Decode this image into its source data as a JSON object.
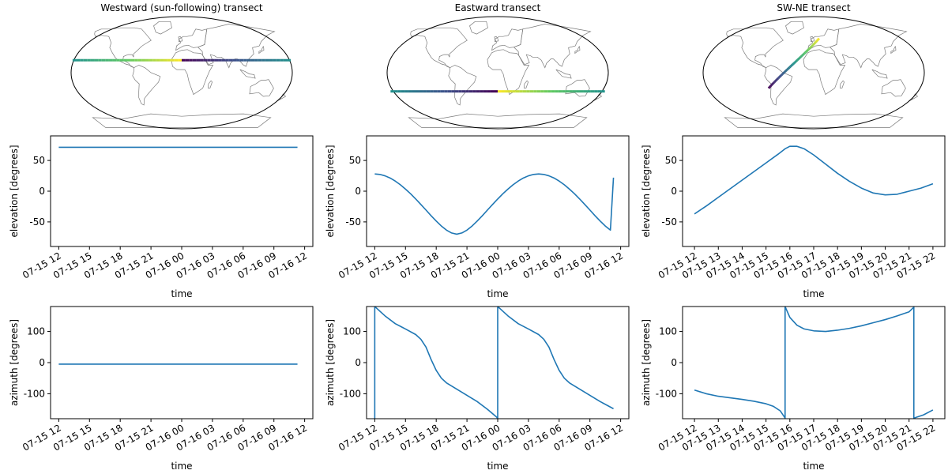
{
  "chart_data": [
    {
      "type": "map",
      "title": "Westward (sun-following) transect",
      "colormap": "viridis",
      "transect": {
        "lon": [
          -180,
          180
        ],
        "lat": [
          20,
          20
        ],
        "color_reversed": false,
        "split": true
      }
    },
    {
      "type": "map",
      "title": "Eastward transect",
      "colormap": "viridis",
      "transect": {
        "lon": [
          -180,
          180
        ],
        "lat": [
          -30,
          -30
        ],
        "color_reversed": true,
        "split": true
      }
    },
    {
      "type": "map",
      "title": "SW-NE transect",
      "colormap": "viridis",
      "transect": {
        "lon": [
          -75,
          10
        ],
        "lat": [
          -25,
          55
        ],
        "color_reversed": false,
        "split": false
      }
    },
    {
      "type": "line",
      "xlabel": "time",
      "ylabel": "elevation [degrees]",
      "ylim": [
        -90,
        90
      ],
      "yticks": [
        -50,
        0,
        50
      ],
      "xlim": [
        -0.8,
        24.8
      ],
      "xticks": [
        0,
        3,
        6,
        9,
        12,
        15,
        18,
        21,
        24
      ],
      "xticklabels": [
        "07-15 12",
        "07-15 15",
        "07-15 18",
        "07-15 21",
        "07-16 00",
        "07-16 03",
        "07-16 06",
        "07-16 09",
        "07-16 12"
      ],
      "x": [
        0,
        23.3
      ],
      "y": [
        71.5,
        71.5
      ]
    },
    {
      "type": "line",
      "xlabel": "time",
      "ylabel": "elevation [degrees]",
      "ylim": [
        -90,
        90
      ],
      "yticks": [
        -50,
        0,
        50
      ],
      "xlim": [
        -0.8,
        24.8
      ],
      "xticks": [
        0,
        3,
        6,
        9,
        12,
        15,
        18,
        21,
        24
      ],
      "xticklabels": [
        "07-15 12",
        "07-15 15",
        "07-15 18",
        "07-15 21",
        "07-16 00",
        "07-16 03",
        "07-16 06",
        "07-16 09",
        "07-16 12"
      ],
      "x": [
        0,
        0.5,
        1,
        1.5,
        2,
        2.5,
        3,
        3.5,
        4,
        4.5,
        5,
        5.5,
        6,
        6.5,
        7,
        7.5,
        8,
        8.5,
        9,
        9.5,
        10,
        10.5,
        11,
        11.5,
        12,
        12.5,
        13,
        13.5,
        14,
        14.5,
        15,
        15.5,
        16,
        16.5,
        17,
        17.5,
        18,
        18.5,
        19,
        19.5,
        20,
        20.5,
        21,
        21.5,
        22,
        22.5,
        23,
        23.3
      ],
      "y": [
        28,
        27.3,
        25,
        21.4,
        16.4,
        10.4,
        3.4,
        -4.3,
        -12.7,
        -21.6,
        -30.7,
        -39.9,
        -48.6,
        -56.7,
        -63.4,
        -68,
        -70,
        -68,
        -63.4,
        -56.7,
        -48.6,
        -39.9,
        -30.7,
        -21.6,
        -12.7,
        -4.3,
        3.4,
        10.4,
        16.4,
        21.4,
        25,
        27.3,
        28,
        27.3,
        25,
        21.4,
        16.4,
        10.4,
        3.4,
        -4.3,
        -12.7,
        -21.6,
        -30.7,
        -39.9,
        -48.6,
        -56.7,
        -63.4,
        22
      ]
    },
    {
      "type": "line",
      "xlabel": "time",
      "ylabel": "elevation [degrees]",
      "ylim": [
        -90,
        90
      ],
      "yticks": [
        -50,
        0,
        50
      ],
      "xlim": [
        -0.5,
        10.5
      ],
      "xticks": [
        0,
        1,
        2,
        3,
        4,
        5,
        6,
        7,
        8,
        9,
        10
      ],
      "xticklabels": [
        "07-15 12",
        "07-15 13",
        "07-15 14",
        "07-15 15",
        "07-15 16",
        "07-15 17",
        "07-15 18",
        "07-15 19",
        "07-15 20",
        "07-15 21",
        "07-15 22"
      ],
      "x": [
        0,
        0.5,
        1,
        1.5,
        2,
        2.5,
        3,
        3.5,
        3.8,
        4,
        4.3,
        4.6,
        5,
        5.5,
        6,
        6.5,
        7,
        7.5,
        8,
        8.5,
        9,
        9.5,
        10
      ],
      "y": [
        -37,
        -24,
        -10,
        4,
        18,
        32,
        46,
        60,
        69,
        73,
        73,
        69,
        59,
        44,
        29,
        16,
        5,
        -3,
        -6,
        -5,
        0,
        5,
        12
      ]
    },
    {
      "type": "line",
      "xlabel": "time",
      "ylabel": "azimuth [degrees]",
      "ylim": [
        -180,
        180
      ],
      "yticks": [
        -100,
        0,
        100
      ],
      "xlim": [
        -0.8,
        24.8
      ],
      "xticks": [
        0,
        3,
        6,
        9,
        12,
        15,
        18,
        21,
        24
      ],
      "xticklabels": [
        "07-15 12",
        "07-15 15",
        "07-15 18",
        "07-15 21",
        "07-16 00",
        "07-16 03",
        "07-16 06",
        "07-16 09",
        "07-16 12"
      ],
      "x": [
        0,
        23.3
      ],
      "y": [
        -5,
        -5
      ]
    },
    {
      "type": "line",
      "xlabel": "time",
      "ylabel": "azimuth [degrees]",
      "ylim": [
        -180,
        180
      ],
      "yticks": [
        -100,
        0,
        100
      ],
      "xlim": [
        -0.8,
        24.8
      ],
      "xticks": [
        0,
        3,
        6,
        9,
        12,
        15,
        18,
        21,
        24
      ],
      "xticklabels": [
        "07-15 12",
        "07-15 15",
        "07-15 18",
        "07-15 21",
        "07-16 00",
        "07-16 03",
        "07-16 06",
        "07-16 09",
        "07-16 12"
      ],
      "x": [
        0,
        0,
        1,
        2,
        3,
        4,
        4.5,
        5,
        5.5,
        6,
        6.5,
        7,
        8,
        9,
        10,
        11,
        11.9,
        12,
        12,
        13,
        14,
        15,
        16,
        16.5,
        17,
        17.5,
        18,
        18.5,
        19,
        20,
        21,
        22,
        23.3
      ],
      "y": [
        -180,
        180,
        150,
        125,
        108,
        90,
        75,
        50,
        10,
        -25,
        -50,
        -65,
        -85,
        -105,
        -125,
        -150,
        -175,
        -180,
        180,
        150,
        125,
        108,
        90,
        75,
        50,
        10,
        -25,
        -50,
        -65,
        -85,
        -105,
        -125,
        -148
      ]
    },
    {
      "type": "line",
      "xlabel": "time",
      "ylabel": "azimuth [degrees]",
      "ylim": [
        -180,
        180
      ],
      "yticks": [
        -100,
        0,
        100
      ],
      "xlim": [
        -0.5,
        10.5
      ],
      "xticks": [
        0,
        1,
        2,
        3,
        4,
        5,
        6,
        7,
        8,
        9,
        10
      ],
      "xticklabels": [
        "07-15 12",
        "07-15 13",
        "07-15 14",
        "07-15 15",
        "07-15 16",
        "07-15 17",
        "07-15 18",
        "07-15 19",
        "07-15 20",
        "07-15 21",
        "07-15 22"
      ],
      "x": [
        0,
        0.5,
        1,
        1.5,
        2,
        2.5,
        3,
        3.3,
        3.6,
        3.8,
        3.8,
        4.0,
        4.3,
        4.6,
        5,
        5.5,
        6,
        6.5,
        7,
        7.5,
        8,
        8.5,
        9,
        9.2,
        9.2,
        9.6,
        10
      ],
      "y": [
        -88,
        -100,
        -108,
        -113,
        -118,
        -124,
        -132,
        -140,
        -155,
        -178,
        180,
        145,
        120,
        108,
        102,
        100,
        104,
        110,
        118,
        128,
        138,
        150,
        163,
        178,
        -178,
        -168,
        -152
      ]
    }
  ]
}
